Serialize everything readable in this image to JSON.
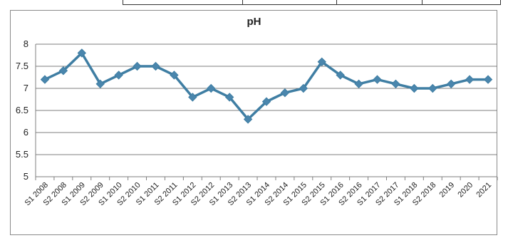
{
  "chart_data": {
    "type": "line",
    "title": "pH",
    "xlabel": "",
    "ylabel": "",
    "categories": [
      "S1 2008",
      "S2 2008",
      "S1 2009",
      "S2 2009",
      "S1 2010",
      "S2 2010",
      "S1 2011",
      "S2 2011",
      "S1 2012",
      "S2 2012",
      "S1 2013",
      "S2 2013",
      "S1 2014",
      "S2 2014",
      "S1 2015",
      "S2 2015",
      "S1 2016",
      "S2 2016",
      "S1 2017",
      "S2 2017",
      "S1 2018",
      "S2 2018",
      "2019",
      "2020",
      "2021"
    ],
    "series": [
      {
        "values": [
          7.2,
          7.4,
          7.8,
          7.1,
          7.3,
          7.5,
          7.5,
          7.3,
          6.8,
          7.0,
          6.8,
          6.3,
          6.7,
          6.9,
          7.0,
          7.6,
          7.3,
          7.1,
          7.2,
          7.1,
          7.0,
          7.0,
          7.1,
          7.2,
          7.2
        ]
      }
    ],
    "ylim": [
      5,
      8
    ],
    "yticks": [
      "5",
      "5.5",
      "6",
      "6.5",
      "7",
      "7.5",
      "8"
    ],
    "grid": true,
    "legend": "none",
    "colors": {
      "line": "#3f7ea3",
      "marker": "#4a86ad",
      "grid": "#7f7f7f",
      "axis": "#7f7f7f"
    }
  }
}
